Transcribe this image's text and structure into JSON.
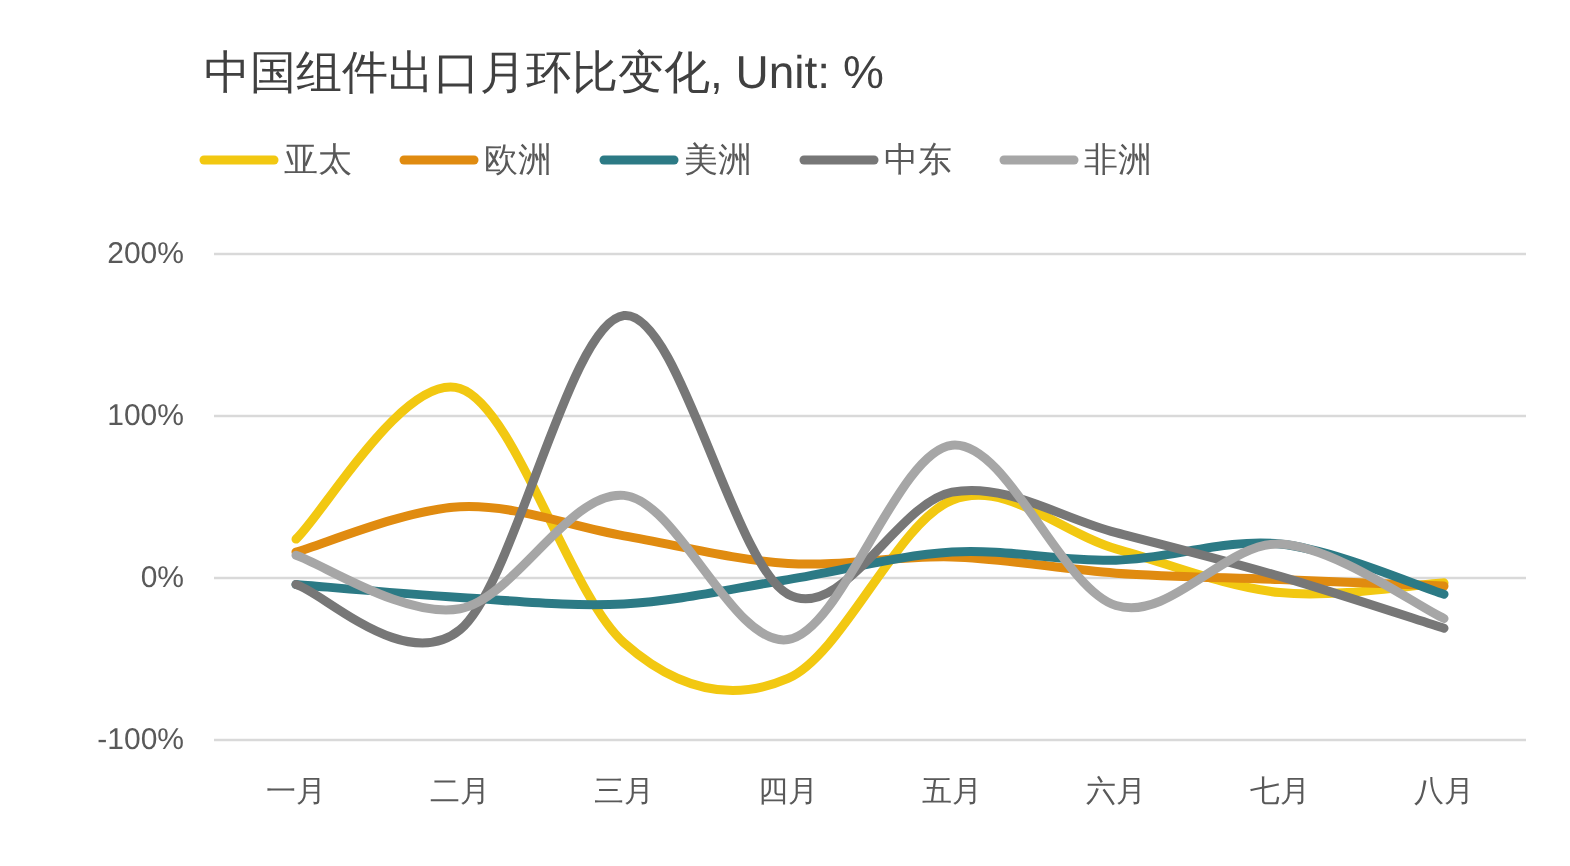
{
  "chart_data": {
    "type": "line",
    "title": "中国组件出口月环比变化, Unit: %",
    "categories": [
      "一月",
      "二月",
      "三月",
      "四月",
      "五月",
      "六月",
      "七月",
      "八月"
    ],
    "series": [
      {
        "name": "亚太",
        "color": "#f2c811",
        "values": [
          24,
          117,
          -40,
          -62,
          48,
          18,
          -9,
          -3
        ]
      },
      {
        "name": "欧洲",
        "color": "#e08b10",
        "values": [
          16,
          44,
          26,
          9,
          13,
          3,
          -1,
          -5
        ]
      },
      {
        "name": "美洲",
        "color": "#2c7a85",
        "values": [
          -4,
          -12,
          -16,
          -1,
          16,
          11,
          21,
          -10
        ]
      },
      {
        "name": "中东",
        "color": "#777777",
        "values": [
          -4,
          -32,
          162,
          -10,
          53,
          28,
          1,
          -31
        ]
      },
      {
        "name": "非洲",
        "color": "#a6a6a6",
        "values": [
          14,
          -19,
          51,
          -38,
          82,
          -17,
          21,
          -25
        ]
      }
    ],
    "ylim": [
      -100,
      200
    ],
    "yticks": [
      {
        "value": -100,
        "label": "-100%"
      },
      {
        "value": 0,
        "label": "0%"
      },
      {
        "value": 100,
        "label": "100%"
      },
      {
        "value": 200,
        "label": "200%"
      }
    ],
    "grid": "y",
    "legend": "top"
  }
}
